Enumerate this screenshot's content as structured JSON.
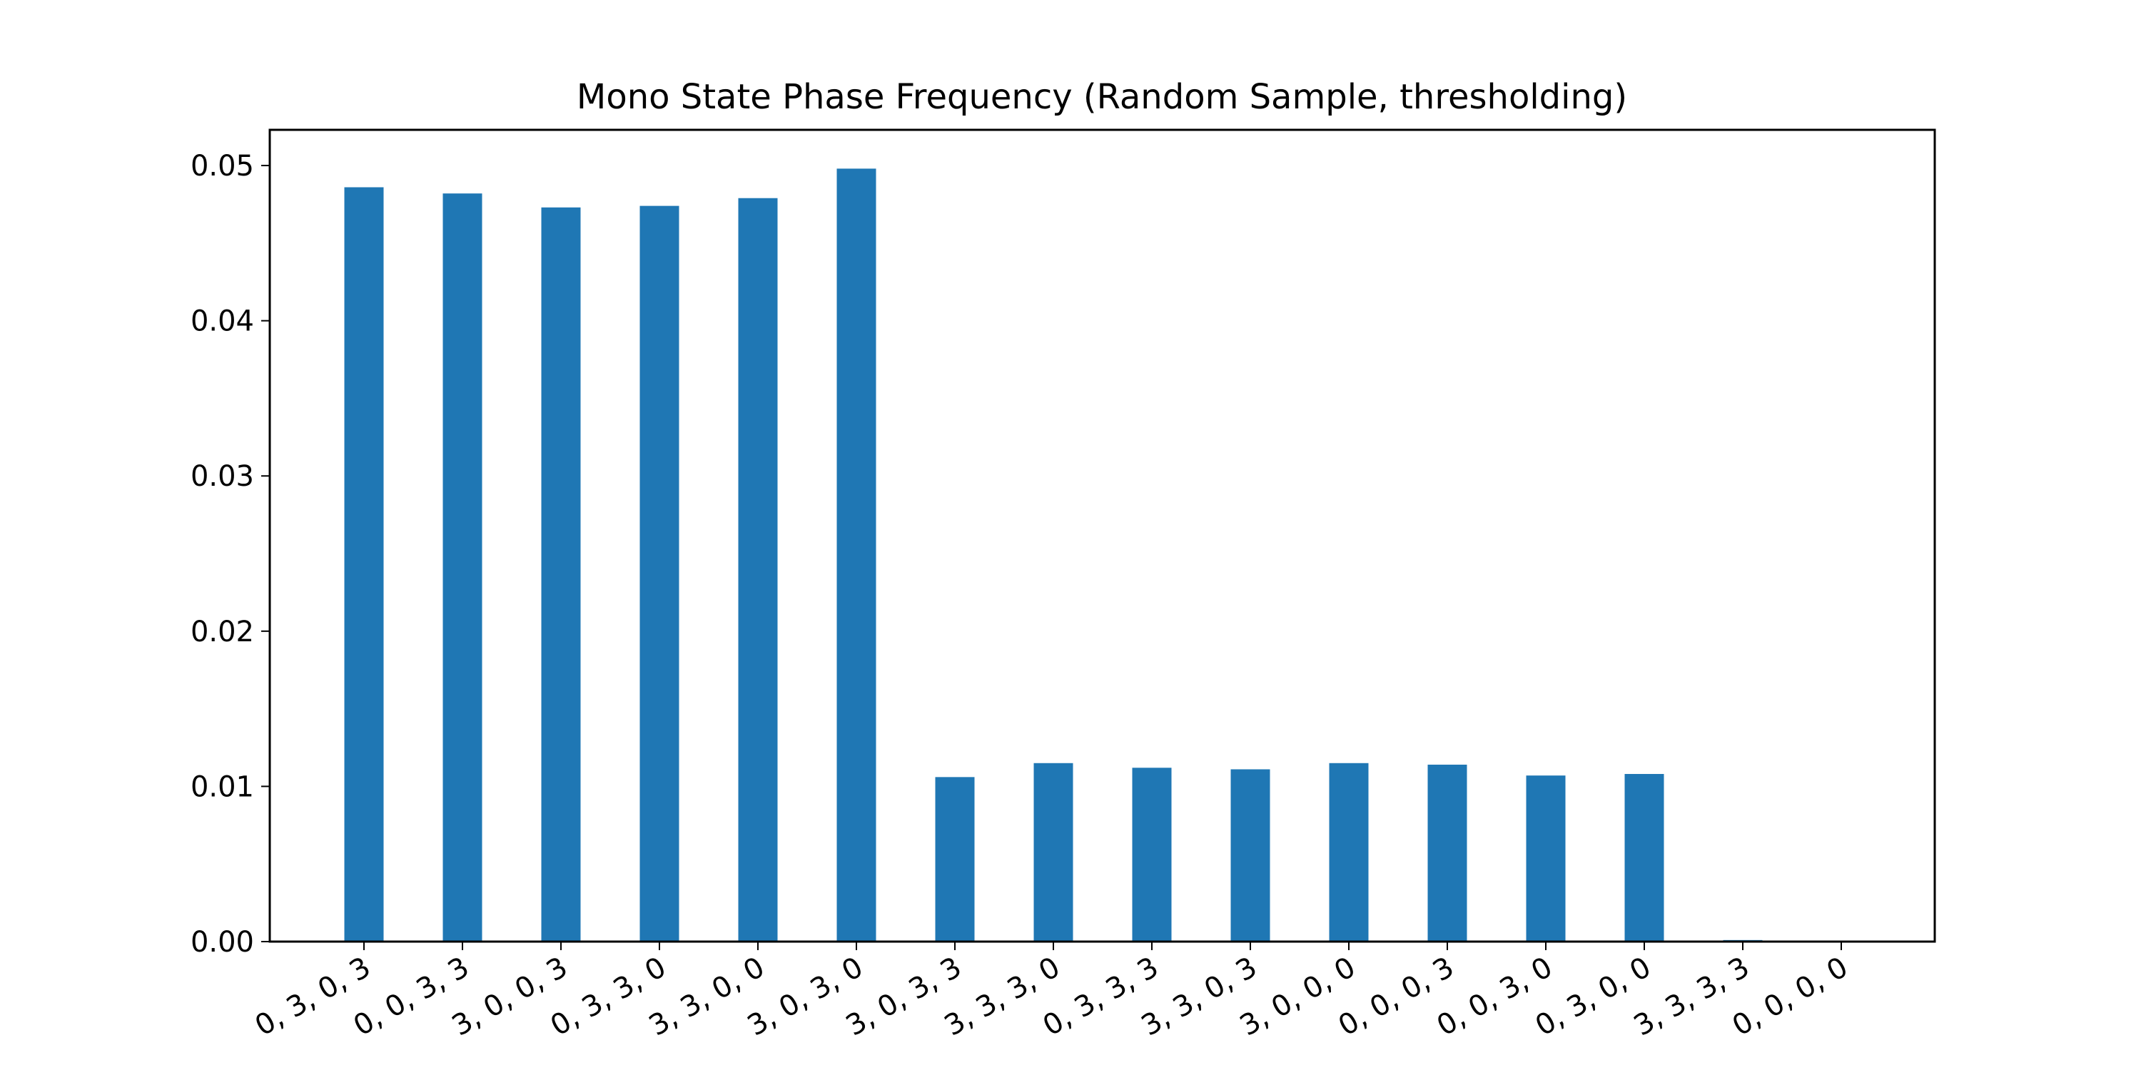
{
  "chart_data": {
    "type": "bar",
    "title": "Mono State Phase Frequency (Random Sample, thresholding)",
    "xlabel": "",
    "ylabel": "",
    "categories": [
      "0, 3, 0, 3",
      "0, 0, 3, 3",
      "3, 0, 0, 3",
      "0, 3, 3, 0",
      "3, 3, 0, 0",
      "3, 0, 3, 0",
      "3, 0, 3, 3",
      "3, 3, 3, 0",
      "0, 3, 3, 3",
      "3, 3, 0, 3",
      "3, 0, 0, 0",
      "0, 0, 0, 3",
      "0, 0, 3, 0",
      "0, 3, 0, 0",
      "3, 3, 3, 3",
      "0, 0, 0, 0"
    ],
    "values": [
      0.0486,
      0.0482,
      0.0473,
      0.0474,
      0.0479,
      0.0498,
      0.0106,
      0.0115,
      0.0112,
      0.0111,
      0.0115,
      0.0114,
      0.0107,
      0.0108,
      0.0001,
      0.0
    ],
    "ylim": [
      0,
      0.0523
    ],
    "yticks": [
      "0.00",
      "0.01",
      "0.02",
      "0.03",
      "0.04",
      "0.05"
    ],
    "xtick_rotation_deg": -30,
    "grid": false,
    "legend": "none",
    "bar_color": "#1f77b4",
    "axis_color": "#000000"
  }
}
